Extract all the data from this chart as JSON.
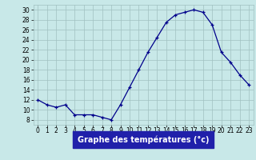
{
  "hours": [
    0,
    1,
    2,
    3,
    4,
    5,
    6,
    7,
    8,
    9,
    10,
    11,
    12,
    13,
    14,
    15,
    16,
    17,
    18,
    19,
    20,
    21,
    22,
    23
  ],
  "temperatures": [
    12,
    11,
    10.5,
    11,
    9,
    9,
    9,
    8.5,
    8,
    11,
    14.5,
    18,
    21.5,
    24.5,
    27.5,
    29,
    29.5,
    30,
    29.5,
    27,
    21.5,
    19.5,
    17,
    15
  ],
  "line_color": "#00008b",
  "marker": "+",
  "marker_color": "#00008b",
  "bg_color": "#c8e8e8",
  "grid_color": "#a0c0c0",
  "xlabel": "Graphe des températures (°c)",
  "xlabel_bg": "#2020aa",
  "xlabel_color": "#ffffff",
  "ylim": [
    7,
    31
  ],
  "yticks": [
    8,
    10,
    12,
    14,
    16,
    18,
    20,
    22,
    24,
    26,
    28,
    30
  ],
  "xlim": [
    -0.5,
    23.5
  ],
  "xticks": [
    0,
    1,
    2,
    3,
    4,
    5,
    6,
    7,
    8,
    9,
    10,
    11,
    12,
    13,
    14,
    15,
    16,
    17,
    18,
    19,
    20,
    21,
    22,
    23
  ],
  "tick_fontsize": 5.5,
  "xlabel_fontsize": 7
}
